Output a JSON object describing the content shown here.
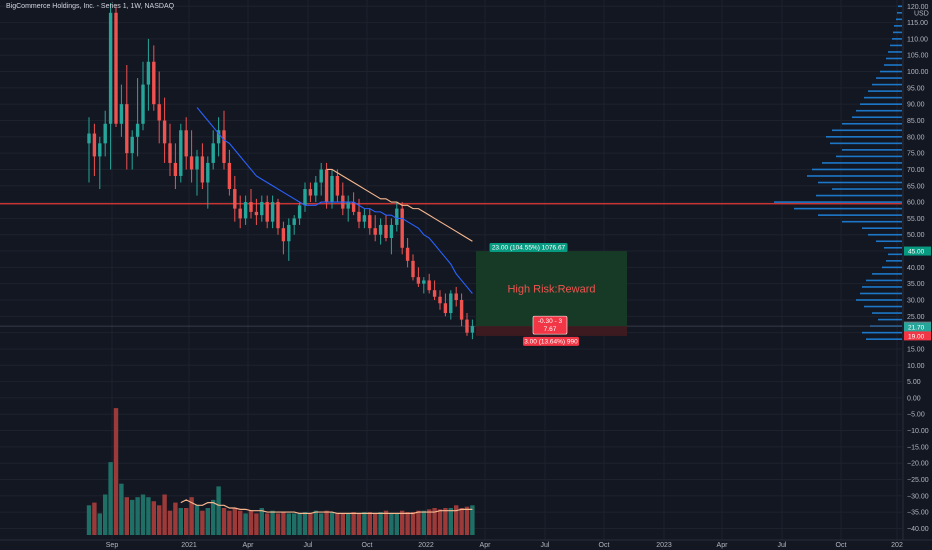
{
  "header": {
    "title": "BigCommerce Holdings, Inc. - Series 1, 1W, NASDAQ"
  },
  "colors": {
    "background": "#131722",
    "up": "#26a69a",
    "down": "#ef5350",
    "volume_up": "#1f6f66",
    "volume_down": "#9c3a3a",
    "sma_fast": "#2962ff",
    "sma_slow": "#f7b78e",
    "level_line": "#e53935",
    "profit_zone": "#163a25",
    "loss_zone": "#3c1a1f",
    "profile_bar": "#1e88e5"
  },
  "chart_data": {
    "type": "candlestick",
    "title": "BigCommerce Holdings, Inc. - Series 1, 1W, NASDAQ",
    "currency": "USD",
    "x_ticks": [
      "Sep",
      "2021",
      "Apr",
      "Jul",
      "Oct",
      "2022",
      "Apr",
      "Jul",
      "Oct",
      "2023",
      "Apr",
      "Jul",
      "Oct",
      "202"
    ],
    "y_ticks": [
      120,
      115,
      110,
      105,
      100,
      95,
      90,
      85,
      80,
      75,
      70,
      65,
      60,
      55,
      50,
      45,
      40,
      35,
      30,
      25,
      20,
      15,
      10,
      5,
      0,
      -5,
      -10,
      -15,
      -20,
      -25,
      -30,
      -35,
      -40
    ],
    "y_tick_labels": [
      "120.00",
      "115.00",
      "110.00",
      "105.00",
      "100.00",
      "95.00",
      "90.00",
      "85.00",
      "80.00",
      "75.00",
      "70.00",
      "65.00",
      "60.00",
      "55.00",
      "50.00",
      "45.00",
      "40.00",
      "35.00",
      "30.00",
      "25.00",
      "20.00",
      "15.00",
      "10.00",
      "5.00",
      "0.00",
      "−5.00",
      "−10.00",
      "−15.00",
      "−20.00",
      "−25.00",
      "−30.00",
      "−35.00",
      "−40.00"
    ],
    "ylim": [
      -42,
      121
    ],
    "horizontal_level": 59.5,
    "price_axis_labels": [
      {
        "label": "45.00",
        "value": 45,
        "color": "#089981"
      },
      {
        "label": "22.00",
        "value": 22,
        "color": "#787b86"
      },
      {
        "label": "21.70",
        "value": 21.7,
        "color": "#26a69a"
      },
      {
        "label": "19.00",
        "value": 19,
        "color": "#f23645"
      }
    ],
    "position": {
      "entry": 22,
      "target": 45,
      "stop": 19,
      "target_label": "23.00 (104.55%) 1076.67",
      "stop_label": "3.00 (13.64%) 990",
      "center_label_1": "-0.30 - 3",
      "center_label_2": "7.67",
      "note": "High Risk:Reward"
    },
    "candles": [
      {
        "o": 78,
        "h": 86,
        "l": 66,
        "c": 81
      },
      {
        "o": 81,
        "h": 84,
        "l": 68,
        "c": 74
      },
      {
        "o": 74,
        "h": 80,
        "l": 64,
        "c": 78
      },
      {
        "o": 78,
        "h": 88,
        "l": 74,
        "c": 84
      },
      {
        "o": 84,
        "h": 121,
        "l": 70,
        "c": 118
      },
      {
        "o": 118,
        "h": 120,
        "l": 83,
        "c": 84
      },
      {
        "o": 84,
        "h": 96,
        "l": 80,
        "c": 90
      },
      {
        "o": 90,
        "h": 102,
        "l": 70,
        "c": 75
      },
      {
        "o": 75,
        "h": 82,
        "l": 70,
        "c": 80
      },
      {
        "o": 80,
        "h": 98,
        "l": 74,
        "c": 84
      },
      {
        "o": 84,
        "h": 103,
        "l": 82,
        "c": 96
      },
      {
        "o": 96,
        "h": 110,
        "l": 88,
        "c": 103
      },
      {
        "o": 103,
        "h": 108,
        "l": 88,
        "c": 90
      },
      {
        "o": 90,
        "h": 100,
        "l": 78,
        "c": 85
      },
      {
        "o": 85,
        "h": 92,
        "l": 72,
        "c": 78
      },
      {
        "o": 78,
        "h": 84,
        "l": 68,
        "c": 72
      },
      {
        "o": 72,
        "h": 78,
        "l": 64,
        "c": 68
      },
      {
        "o": 68,
        "h": 84,
        "l": 66,
        "c": 82
      },
      {
        "o": 82,
        "h": 86,
        "l": 70,
        "c": 74
      },
      {
        "o": 74,
        "h": 82,
        "l": 66,
        "c": 70
      },
      {
        "o": 70,
        "h": 76,
        "l": 62,
        "c": 74
      },
      {
        "o": 74,
        "h": 78,
        "l": 64,
        "c": 66
      },
      {
        "o": 66,
        "h": 74,
        "l": 58,
        "c": 72
      },
      {
        "o": 72,
        "h": 82,
        "l": 70,
        "c": 78
      },
      {
        "o": 78,
        "h": 86,
        "l": 74,
        "c": 82
      },
      {
        "o": 82,
        "h": 88,
        "l": 70,
        "c": 72
      },
      {
        "o": 72,
        "h": 76,
        "l": 62,
        "c": 64
      },
      {
        "o": 64,
        "h": 68,
        "l": 54,
        "c": 58
      },
      {
        "o": 58,
        "h": 62,
        "l": 52,
        "c": 55
      },
      {
        "o": 55,
        "h": 62,
        "l": 53,
        "c": 60
      },
      {
        "o": 60,
        "h": 64,
        "l": 55,
        "c": 57
      },
      {
        "o": 57,
        "h": 61,
        "l": 53,
        "c": 56
      },
      {
        "o": 56,
        "h": 62,
        "l": 54,
        "c": 60
      },
      {
        "o": 60,
        "h": 62,
        "l": 52,
        "c": 54
      },
      {
        "o": 54,
        "h": 62,
        "l": 52,
        "c": 60
      },
      {
        "o": 60,
        "h": 61,
        "l": 50,
        "c": 52
      },
      {
        "o": 52,
        "h": 54,
        "l": 44,
        "c": 48
      },
      {
        "o": 48,
        "h": 55,
        "l": 42,
        "c": 53
      },
      {
        "o": 53,
        "h": 56,
        "l": 50,
        "c": 55
      },
      {
        "o": 55,
        "h": 60,
        "l": 53,
        "c": 59
      },
      {
        "o": 59,
        "h": 66,
        "l": 57,
        "c": 64
      },
      {
        "o": 64,
        "h": 66,
        "l": 60,
        "c": 62
      },
      {
        "o": 62,
        "h": 68,
        "l": 60,
        "c": 66
      },
      {
        "o": 66,
        "h": 72,
        "l": 62,
        "c": 70
      },
      {
        "o": 70,
        "h": 72,
        "l": 58,
        "c": 60
      },
      {
        "o": 60,
        "h": 70,
        "l": 58,
        "c": 68
      },
      {
        "o": 68,
        "h": 70,
        "l": 60,
        "c": 62
      },
      {
        "o": 62,
        "h": 66,
        "l": 56,
        "c": 58
      },
      {
        "o": 58,
        "h": 62,
        "l": 54,
        "c": 60
      },
      {
        "o": 60,
        "h": 63,
        "l": 56,
        "c": 57
      },
      {
        "o": 57,
        "h": 61,
        "l": 52,
        "c": 54
      },
      {
        "o": 54,
        "h": 58,
        "l": 52,
        "c": 56
      },
      {
        "o": 56,
        "h": 58,
        "l": 50,
        "c": 52
      },
      {
        "o": 52,
        "h": 56,
        "l": 48,
        "c": 50
      },
      {
        "o": 50,
        "h": 55,
        "l": 47,
        "c": 53
      },
      {
        "o": 53,
        "h": 56,
        "l": 48,
        "c": 49
      },
      {
        "o": 49,
        "h": 55,
        "l": 44,
        "c": 53
      },
      {
        "o": 53,
        "h": 60,
        "l": 51,
        "c": 58
      },
      {
        "o": 58,
        "h": 60,
        "l": 44,
        "c": 46
      },
      {
        "o": 46,
        "h": 49,
        "l": 40,
        "c": 42
      },
      {
        "o": 42,
        "h": 44,
        "l": 36,
        "c": 37
      },
      {
        "o": 37,
        "h": 40,
        "l": 34,
        "c": 35
      },
      {
        "o": 35,
        "h": 37,
        "l": 32,
        "c": 36
      },
      {
        "o": 36,
        "h": 38,
        "l": 32,
        "c": 33
      },
      {
        "o": 33,
        "h": 36,
        "l": 30,
        "c": 31
      },
      {
        "o": 31,
        "h": 33,
        "l": 27,
        "c": 29
      },
      {
        "o": 29,
        "h": 32,
        "l": 25,
        "c": 26
      },
      {
        "o": 26,
        "h": 33,
        "l": 24,
        "c": 32
      },
      {
        "o": 32,
        "h": 34,
        "l": 28,
        "c": 30
      },
      {
        "o": 30,
        "h": 32,
        "l": 22,
        "c": 24
      },
      {
        "o": 24,
        "h": 26,
        "l": 19,
        "c": 20
      },
      {
        "o": 20,
        "h": 24,
        "l": 18,
        "c": 22
      }
    ],
    "volumes": [
      22,
      24,
      16,
      30,
      54,
      94,
      38,
      28,
      26,
      28,
      30,
      28,
      25,
      22,
      30,
      18,
      24,
      20,
      20,
      28,
      22,
      18,
      20,
      26,
      36,
      20,
      18,
      20,
      18,
      16,
      18,
      16,
      20,
      16,
      18,
      16,
      17,
      16,
      16,
      16,
      17,
      16,
      18,
      16,
      18,
      17,
      16,
      16,
      16,
      17,
      16,
      17,
      17,
      16,
      17,
      18,
      16,
      16,
      18,
      17,
      17,
      18,
      18,
      19,
      20,
      19,
      20,
      20,
      22,
      20,
      21,
      22
    ],
    "sma_fast": [
      null,
      null,
      null,
      null,
      null,
      null,
      null,
      null,
      null,
      null,
      null,
      null,
      null,
      null,
      null,
      null,
      null,
      null,
      null,
      null,
      89,
      87,
      85,
      83,
      81,
      79,
      78,
      76,
      74,
      72,
      70,
      68,
      67,
      66,
      65,
      64,
      63,
      62,
      61,
      60,
      59,
      59,
      59,
      60,
      60,
      60,
      60,
      60,
      60,
      60,
      59,
      58,
      58,
      57,
      57,
      56,
      56,
      55,
      55,
      54,
      53,
      52,
      50,
      49,
      47,
      45,
      43,
      41,
      38,
      36,
      34,
      32
    ],
    "sma_slow": [
      null,
      null,
      null,
      null,
      null,
      null,
      null,
      null,
      null,
      null,
      null,
      null,
      null,
      null,
      null,
      null,
      null,
      null,
      null,
      null,
      null,
      null,
      null,
      null,
      null,
      null,
      null,
      null,
      null,
      null,
      null,
      null,
      null,
      null,
      null,
      null,
      null,
      null,
      null,
      null,
      null,
      null,
      null,
      null,
      70,
      70,
      69,
      68,
      67,
      66,
      65,
      64,
      63,
      62,
      61,
      61,
      60,
      60,
      59,
      59,
      58,
      58,
      57,
      56,
      55,
      54,
      53,
      52,
      51,
      50,
      49,
      48
    ],
    "volume_ma": [
      null,
      null,
      null,
      null,
      null,
      null,
      null,
      null,
      null,
      null,
      null,
      null,
      null,
      null,
      null,
      null,
      null,
      24,
      26,
      24,
      22,
      22,
      24,
      24,
      22,
      22,
      20,
      20,
      19,
      19,
      18,
      18,
      18,
      17,
      17,
      17,
      17,
      17,
      17,
      16,
      16,
      16,
      17,
      17,
      17,
      17,
      16,
      16,
      16,
      16,
      16,
      16,
      16,
      16,
      16,
      16,
      16,
      16,
      16,
      16,
      16,
      17,
      17,
      17,
      17,
      18,
      18,
      18,
      18,
      19,
      19,
      19
    ],
    "volume_profile": [
      {
        "price": 120,
        "w": 4
      },
      {
        "price": 118,
        "w": 5
      },
      {
        "price": 116,
        "w": 6
      },
      {
        "price": 114,
        "w": 8
      },
      {
        "price": 112,
        "w": 9
      },
      {
        "price": 110,
        "w": 10
      },
      {
        "price": 108,
        "w": 12
      },
      {
        "price": 106,
        "w": 14
      },
      {
        "price": 104,
        "w": 16
      },
      {
        "price": 102,
        "w": 18
      },
      {
        "price": 100,
        "w": 22
      },
      {
        "price": 98,
        "w": 26
      },
      {
        "price": 96,
        "w": 30
      },
      {
        "price": 94,
        "w": 34
      },
      {
        "price": 92,
        "w": 38
      },
      {
        "price": 90,
        "w": 42
      },
      {
        "price": 88,
        "w": 46
      },
      {
        "price": 86,
        "w": 50
      },
      {
        "price": 84,
        "w": 60
      },
      {
        "price": 82,
        "w": 70
      },
      {
        "price": 80,
        "w": 76
      },
      {
        "price": 78,
        "w": 72
      },
      {
        "price": 76,
        "w": 60
      },
      {
        "price": 74,
        "w": 66
      },
      {
        "price": 72,
        "w": 80
      },
      {
        "price": 70,
        "w": 90
      },
      {
        "price": 68,
        "w": 95
      },
      {
        "price": 66,
        "w": 84
      },
      {
        "price": 64,
        "w": 70
      },
      {
        "price": 62,
        "w": 86
      },
      {
        "price": 60,
        "w": 128
      },
      {
        "price": 58,
        "w": 108
      },
      {
        "price": 56,
        "w": 84
      },
      {
        "price": 54,
        "w": 60
      },
      {
        "price": 52,
        "w": 40
      },
      {
        "price": 50,
        "w": 34
      },
      {
        "price": 48,
        "w": 26
      },
      {
        "price": 46,
        "w": 18
      },
      {
        "price": 44,
        "w": 14
      },
      {
        "price": 42,
        "w": 16
      },
      {
        "price": 40,
        "w": 20
      },
      {
        "price": 38,
        "w": 30
      },
      {
        "price": 36,
        "w": 36
      },
      {
        "price": 34,
        "w": 40
      },
      {
        "price": 32,
        "w": 42
      },
      {
        "price": 30,
        "w": 46
      },
      {
        "price": 28,
        "w": 38
      },
      {
        "price": 26,
        "w": 30
      },
      {
        "price": 24,
        "w": 24
      },
      {
        "price": 22,
        "w": 32
      },
      {
        "price": 20,
        "w": 40
      },
      {
        "price": 18,
        "w": 36
      }
    ]
  }
}
